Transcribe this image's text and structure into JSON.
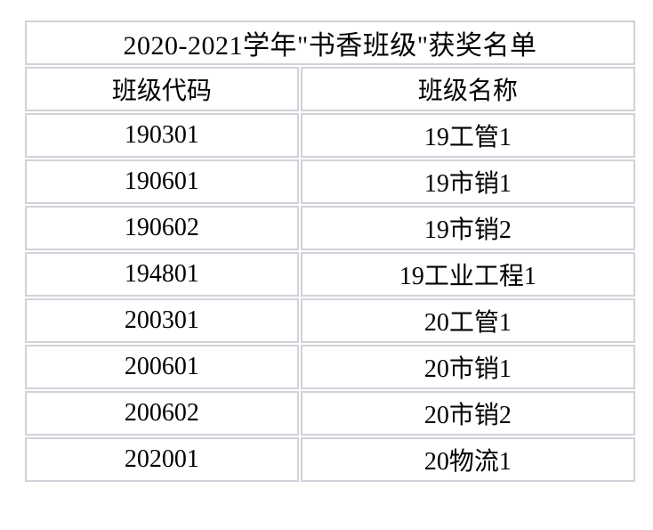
{
  "table": {
    "title": "2020-2021学年\"书香班级\"获奖名单",
    "columns": {
      "class_code": "班级代码",
      "class_name": "班级名称"
    },
    "rows": [
      [
        "190301",
        "19工管1"
      ],
      [
        "190601",
        "19市销1"
      ],
      [
        "190602",
        "19市销2"
      ],
      [
        "194801",
        "19工业工程1"
      ],
      [
        "200301",
        "20工管1"
      ],
      [
        "200601",
        "20市销1"
      ],
      [
        "200602",
        "20市销2"
      ],
      [
        "202001",
        "20物流1"
      ]
    ],
    "colors": {
      "border": "#d2d2da",
      "text": "#000000",
      "background": "#ffffff"
    }
  }
}
